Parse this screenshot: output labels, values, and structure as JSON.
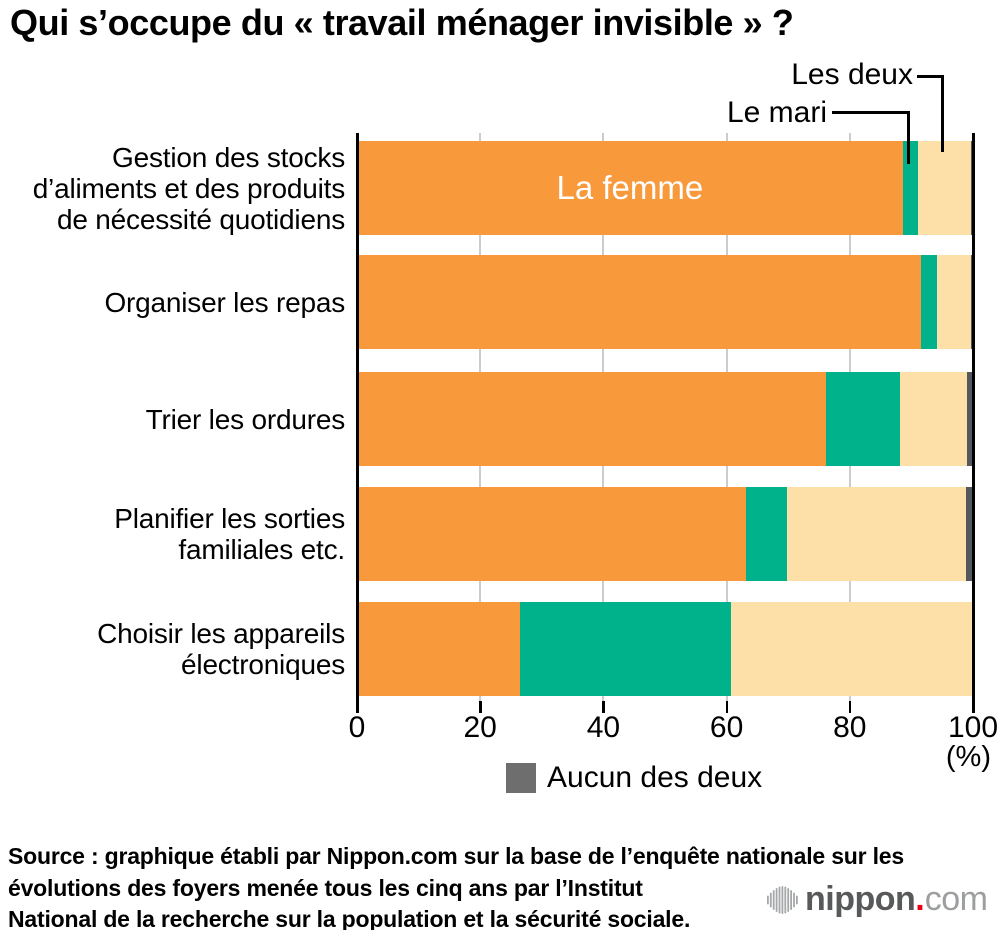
{
  "title": "Qui s’occupe du « travail ménager invisible » ?",
  "chart_data": {
    "type": "bar",
    "orientation": "horizontal",
    "stacked": true,
    "x_unit": "(%)",
    "xlim": [
      0,
      100
    ],
    "x_ticks": [
      0,
      20,
      40,
      60,
      80,
      100
    ],
    "grid": true,
    "categories": [
      [
        "Gestion des stocks",
        "d’aliments et des produits",
        "de nécessité quotidiens"
      ],
      [
        "Organiser les repas"
      ],
      [
        "Trier les ordures"
      ],
      [
        "Planifier les sorties",
        "familiales etc."
      ],
      [
        "Choisir les appareils",
        "électroniques"
      ]
    ],
    "series": [
      {
        "name": "La femme",
        "color": "#F8993B",
        "values": [
          88.6,
          91.5,
          76.2,
          63.1,
          26.5
        ]
      },
      {
        "name": "Le mari",
        "color": "#00B28C",
        "values": [
          2.5,
          2.7,
          11.9,
          6.7,
          34.2
        ]
      },
      {
        "name": "Les deux",
        "color": "#FCE0A8",
        "values": [
          8.5,
          5.4,
          11.0,
          29.1,
          39.3
        ]
      },
      {
        "name": "Aucun des deux",
        "color": "#54575B",
        "values": [
          0.4,
          0.4,
          0.9,
          1.1,
          0.0
        ]
      }
    ],
    "in_bar_label": "La femme",
    "axis_color": "#000000",
    "gridline_color": "#CCCCCC"
  },
  "legend": {
    "label": "Aucun des deux",
    "swatch_color": "#6E6E6E"
  },
  "source": {
    "lines": [
      "Source : graphique établi par Nippon.com sur la base de l’enquête nationale sur les",
      "évolutions des foyers menée tous les cinq ans par l’Institut",
      "National de la recherche sur la population et la sécurité sociale."
    ]
  },
  "logo": {
    "icon": "soundwave-icon",
    "text_main": "nippon",
    "dot": ".",
    "text_suffix": "com",
    "dot_color": "#E60012",
    "icon_color": "#A5A7A9"
  }
}
